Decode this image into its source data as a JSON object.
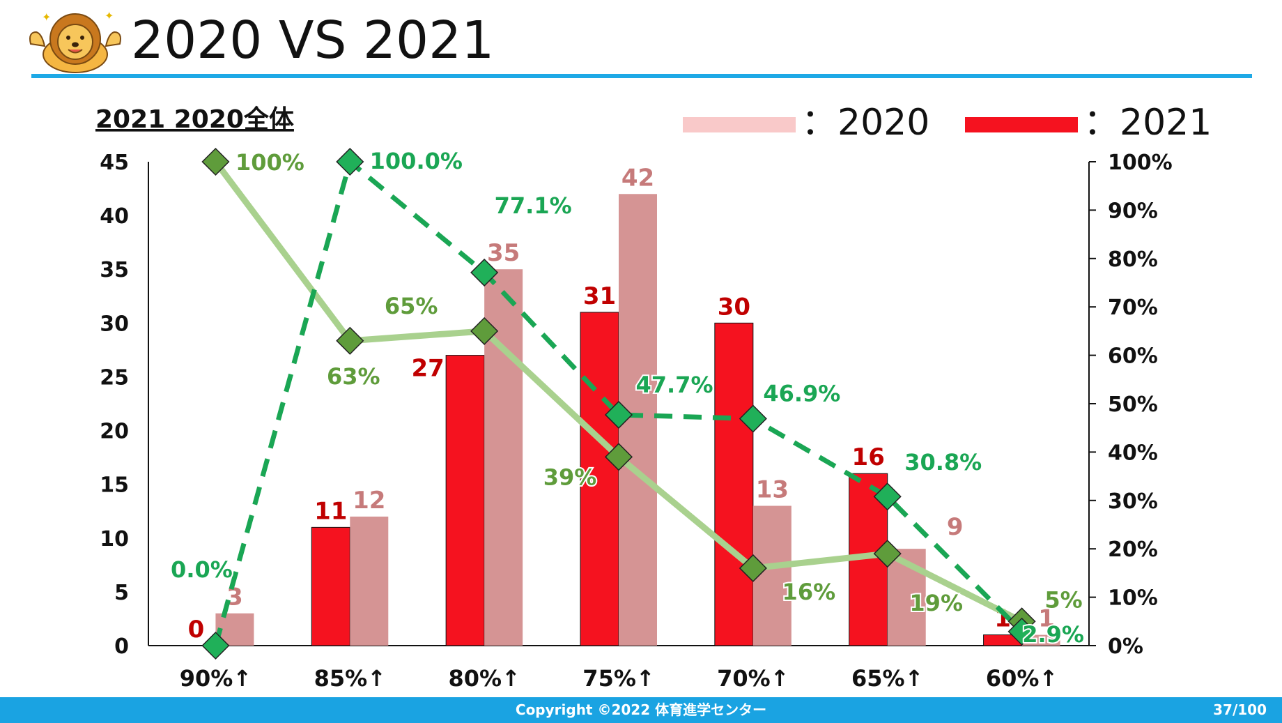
{
  "slide": {
    "title": "2020 VS 2021"
  },
  "footer": {
    "copyright": "Copyright ©2022 体育進学センター",
    "page": "37/100"
  },
  "colors": {
    "accent": "#1ea9e6",
    "bar_2021": "#f5121f",
    "bar_2020": "#d59494",
    "legend_2020": "#f9c9c9",
    "line_2020": "#a9d18e",
    "marker_2020": "#5f9c3b",
    "line_2021": "#1aa654",
    "marker_2021": "#20b059",
    "label_2021": "#c00000",
    "label_2020": "#c67a7a"
  },
  "chart_data": {
    "type": "bar",
    "title": "2021 2020全体",
    "categories": [
      "90%↑",
      "85%↑",
      "80%↑",
      "75%↑",
      "70%↑",
      "65%↑",
      "60%↑"
    ],
    "y_left": {
      "min": 0,
      "max": 45,
      "ticks": [
        "0",
        "5",
        "10",
        "15",
        "20",
        "25",
        "30",
        "35",
        "40",
        "45"
      ]
    },
    "y_right": {
      "min": 0,
      "max": 100,
      "ticks": [
        "0%",
        "10%",
        "20%",
        "30%",
        "40%",
        "50%",
        "60%",
        "70%",
        "80%",
        "90%",
        "100%"
      ]
    },
    "legend": {
      "position": "top-right",
      "items": [
        {
          "name": "：2020",
          "color": "#f9c9c9"
        },
        {
          "name": "：2021",
          "color": "#f5121f"
        }
      ]
    },
    "series": [
      {
        "name": "2021",
        "kind": "bar",
        "axis": "left",
        "values": [
          0,
          11,
          27,
          31,
          30,
          16,
          1
        ],
        "labels": [
          "0",
          "11",
          "27",
          "31",
          "30",
          "16",
          "1"
        ]
      },
      {
        "name": "2020",
        "kind": "bar",
        "axis": "left",
        "values": [
          3,
          12,
          35,
          42,
          13,
          9,
          1
        ],
        "labels": [
          "3",
          "12",
          "35",
          "42",
          "13",
          "9",
          "1"
        ]
      },
      {
        "name": "2021",
        "kind": "line",
        "axis": "right",
        "values": [
          0.0,
          100.0,
          77.1,
          47.7,
          46.9,
          30.8,
          2.9
        ],
        "labels": [
          "0.0%",
          "100.0%",
          "77.1%",
          "47.7%",
          "46.9%",
          "30.8%",
          "2.9%"
        ]
      },
      {
        "name": "2020",
        "kind": "line",
        "axis": "right",
        "values": [
          100,
          63,
          65,
          39,
          16,
          19,
          5
        ],
        "labels": [
          "100%",
          "63%",
          "65%",
          "39%",
          "16%",
          "19%",
          "5%"
        ]
      }
    ]
  }
}
